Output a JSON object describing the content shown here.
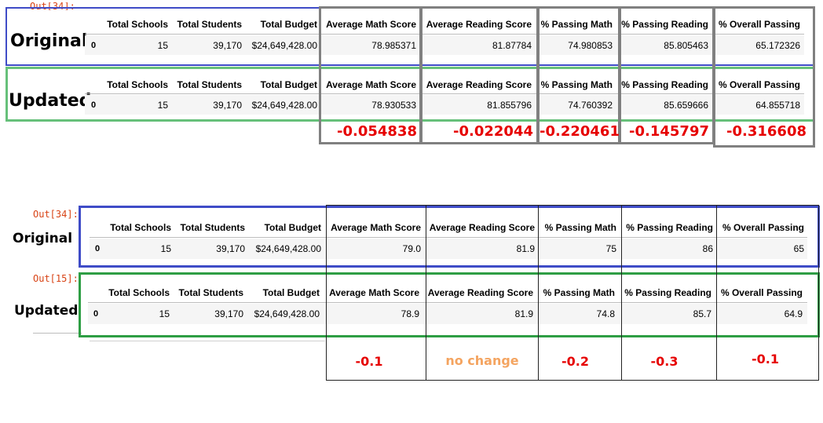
{
  "columns": [
    "Total Schools",
    "Total Students",
    "Total Budget",
    "Average Math Score",
    "Average Reading Score",
    "% Passing Math",
    "% Passing Reading",
    "% Overall Passing"
  ],
  "top": {
    "prompt": "Out[34]:",
    "original": {
      "label": "Original",
      "index": "0",
      "values": [
        "15",
        "39,170",
        "$24,649,428.00",
        "78.985371",
        "81.87784",
        "74.980853",
        "85.805463",
        "65.172326"
      ]
    },
    "updated": {
      "label": "Updated",
      "index": "0",
      "values": [
        "15",
        "39,170",
        "$24,649,428.00",
        "78.930533",
        "81.855796",
        "74.760392",
        "85.659666",
        "64.855718"
      ]
    },
    "diffs": [
      "-0.054838",
      "-0.022044",
      "-0.220461",
      "-0.145797",
      "-0.316608"
    ]
  },
  "bottom": {
    "original": {
      "prompt": "Out[34]:",
      "label": "Original",
      "index": "0",
      "values": [
        "15",
        "39,170",
        "$24,649,428.00",
        "79.0",
        "81.9",
        "75",
        "86",
        "65"
      ]
    },
    "updated": {
      "prompt": "Out[15]:",
      "label": "Updated",
      "index": "0",
      "values": [
        "15",
        "39,170",
        "$24,649,428.00",
        "78.9",
        "81.9",
        "74.8",
        "85.7",
        "64.9"
      ]
    },
    "diffs": [
      "-0.1",
      "no change",
      "-0.2",
      "-0.3",
      "-0.1"
    ]
  },
  "colors": {
    "original_frame": "#3f4cc7",
    "updated_frame": "#66c07a",
    "updated_frame_bottom": "#2e9e44",
    "highlight_frame": "#808080",
    "diff_red": "#e60000",
    "no_change": "#f4a460",
    "prompt_red": "#d84315"
  }
}
